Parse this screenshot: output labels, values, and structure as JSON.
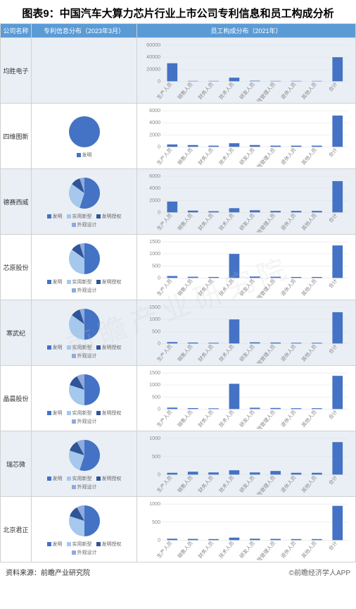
{
  "title": "图表9：中国汽车大算力芯片行业上市公司专利信息和员工构成分析",
  "headers": {
    "company": "公司名称",
    "patent": "专利信息分布（2023年3月）",
    "employee": "员工构成分布（2021年）"
  },
  "pie_colors": [
    "#4472c4",
    "#a5c8ec",
    "#2e5597",
    "#8faadc"
  ],
  "pie_legend_labels": [
    "发明",
    "实用新型",
    "发明授权",
    "外观设计"
  ],
  "bar_categories": [
    "生产人员",
    "销售人员",
    "财务人员",
    "技术人员",
    "研发人员",
    "行政管理人员",
    "退休人员",
    "其他人员",
    "合计"
  ],
  "bar_color": "#4472c4",
  "grid_color": "#e0e0e0",
  "text_color": "#888888",
  "rows": [
    {
      "name": "均胜电子",
      "pie": null,
      "pie_legend": [],
      "bar": {
        "ymax": 60000,
        "ystep": 20000,
        "values": [
          30000,
          600,
          600,
          6000,
          900,
          600,
          600,
          600,
          40000
        ]
      }
    },
    {
      "name": "四维图新",
      "pie": [
        100
      ],
      "pie_legend": [
        "发明"
      ],
      "bar": {
        "ymax": 6000,
        "ystep": 2000,
        "values": [
          400,
          300,
          200,
          600,
          300,
          200,
          200,
          200,
          5200
        ]
      }
    },
    {
      "name": "德赛西威",
      "pie": [
        55,
        30,
        10,
        5
      ],
      "pie_legend": [
        "发明",
        "实用新型",
        "发明授权",
        "外观设计"
      ],
      "bar": {
        "ymax": 6000,
        "ystep": 2000,
        "values": [
          1800,
          300,
          200,
          700,
          350,
          250,
          250,
          250,
          5200
        ]
      }
    },
    {
      "name": "芯原股份",
      "pie": [
        50,
        35,
        10,
        5
      ],
      "pie_legend": [
        "发明",
        "实用新型",
        "发明授权",
        "外观设计"
      ],
      "bar": {
        "ymax": 1500,
        "ystep": 500,
        "values": [
          80,
          50,
          40,
          1000,
          60,
          50,
          40,
          40,
          1350
        ]
      }
    },
    {
      "name": "寒武纪",
      "pie": [
        50,
        35,
        10,
        5
      ],
      "pie_legend": [
        "发明",
        "实用新型",
        "发明授权",
        "外观设计"
      ],
      "bar": {
        "ymax": 1500,
        "ystep": 500,
        "values": [
          60,
          40,
          30,
          1000,
          50,
          40,
          30,
          30,
          1300
        ]
      }
    },
    {
      "name": "晶晨股份",
      "pie": [
        50,
        30,
        12,
        8
      ],
      "pie_legend": [
        "发明",
        "实用新型",
        "发明授权",
        "外观设计"
      ],
      "bar": {
        "ymax": 1500,
        "ystep": 500,
        "values": [
          60,
          40,
          30,
          1050,
          55,
          45,
          35,
          35,
          1380
        ]
      }
    },
    {
      "name": "瑞芯微",
      "pie": [
        55,
        25,
        12,
        8
      ],
      "pie_legend": [
        "发明",
        "实用新型",
        "发明授权",
        "外观设计"
      ],
      "bar": {
        "ymax": 1000,
        "ystep": 500,
        "values": [
          50,
          80,
          60,
          120,
          60,
          100,
          50,
          50,
          900
        ]
      }
    },
    {
      "name": "北京君正",
      "pie": [
        50,
        30,
        12,
        8
      ],
      "pie_legend": [
        "发明",
        "实用新型",
        "发明授权",
        "外观设计"
      ],
      "bar": {
        "ymax": 1000,
        "ystep": 500,
        "values": [
          40,
          35,
          30,
          70,
          40,
          35,
          30,
          30,
          950
        ]
      }
    }
  ],
  "footer": {
    "left": "资料来源：前瞻产业研究院",
    "right": "©前瞻经济学人APP"
  },
  "watermark": "前瞻产业研究院"
}
